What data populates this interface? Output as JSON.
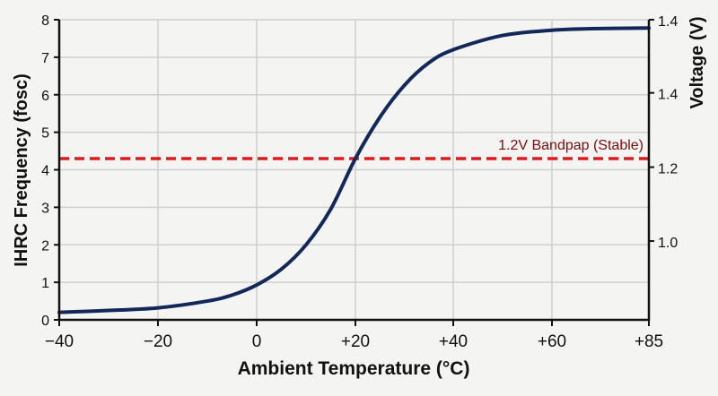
{
  "chart_data": {
    "type": "line",
    "xlabel": "Ambient Temperature (°C)",
    "ylabel": "IHRC Frequency (fosc)",
    "y2label": "Voltage (V)",
    "x_ticks": [
      -40,
      -20,
      0,
      20,
      40,
      60,
      85
    ],
    "x_tick_labels": [
      "−40",
      "−20",
      "0",
      "+20",
      "+40",
      "+60",
      "+85"
    ],
    "ylim": [
      0,
      8
    ],
    "y_ticks": [
      0,
      1,
      2,
      3,
      4,
      5,
      6,
      7,
      8
    ],
    "y_tick_labels": [
      "0",
      "1",
      "2",
      "3",
      "4",
      "5",
      "6",
      "7",
      "8"
    ],
    "y2_ticks": [
      {
        "label": "1.4",
        "at_y": 8
      },
      {
        "label": "1.4",
        "at_y": 6.05
      },
      {
        "label": "1.2",
        "at_y": 4.07
      },
      {
        "label": "1.0",
        "at_y": 2.1
      }
    ],
    "grid": true,
    "series": [
      {
        "name": "IHRC Frequency",
        "color": "#13285a",
        "x": [
          -40,
          -30,
          -20,
          -10,
          -5,
          0,
          5,
          10,
          15,
          20,
          25,
          30,
          35,
          40,
          50,
          60,
          70,
          85
        ],
        "y": [
          0.2,
          0.25,
          0.32,
          0.5,
          0.66,
          0.93,
          1.35,
          2.0,
          2.95,
          4.3,
          5.4,
          6.25,
          6.85,
          7.2,
          7.58,
          7.72,
          7.76,
          7.78
        ]
      }
    ],
    "reference_line": {
      "label": "1.2V Bandpap (Stable)",
      "y": 4.3,
      "color": "#e01b1b",
      "label_color": "#7a0d0d"
    }
  }
}
